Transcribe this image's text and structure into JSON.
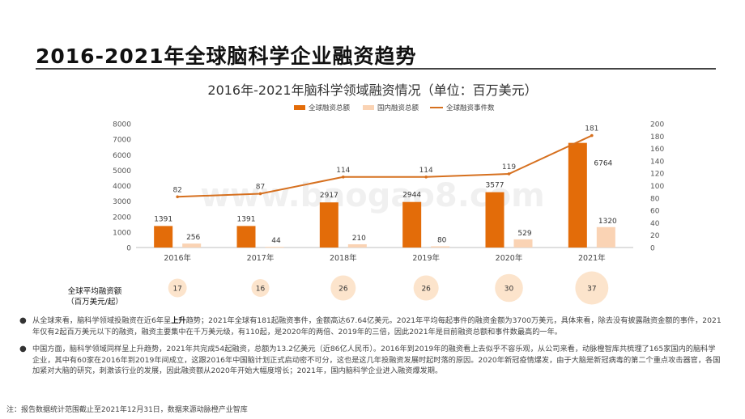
{
  "page_title": "2016-2021年全球脑科学企业融资趋势",
  "chart_title": "2016年-2021年脑科学领域融资情况（单位：百万美元）",
  "avg_label_line1": "全球平均融资额",
  "avg_label_line2": "（百万美元/起）",
  "bullet1": {
    "pre": "从全球来看，脑科学领域投融资在近6年呈",
    "bold": "上升",
    "post": "趋势；2021年全球有181起融资事件，金额高达67.64亿美元。2021年平均每起事件的融资金额为3700万美元，具体来看，除去没有披露融资金额的事件，2021年仅有2起百万美元以下的融资，融资主要集中在千万美元级，有110起，是2020年的两倍、2019年的三倍，因此2021年是目前融资总额和事件数最高的一年。"
  },
  "bullet2": "中国方面，脑科学领域同样呈上升趋势，2021年共完成54起融资，总额为13.2亿美元（近86亿人民币）。2016年到2019年的融资看上去似乎不容乐观，从公司来看，动脉橙智库共梳理了165家国内的脑科学企业，其中有60家在2016年到2019年间成立，这跟2016年中国脑计划正式启动密不可分，这也是这几年投融资发展时起时落的原因。2020年新冠疫情爆发，由于大脑是新冠病毒的第二个重点攻击器官，各国加紧对大脑的研究，刺激该行业的发展，因此融资额从2020年开始大幅度增长；2021年，国内脑科学企业进入融资爆发期。",
  "note": "注：报告数据统计范围截止至2021年12月31日，数据来源动脉橙产业智库",
  "watermark": "www.baogao8.com",
  "colors": {
    "global": "#E36C09",
    "domestic": "#FAD3B4",
    "line": "#D6701F",
    "circle": "#FCE4CC"
  },
  "chart_data": {
    "type": "bar+line",
    "title": "2016年-2021年脑科学领域融资情况（单位：百万美元）",
    "categories": [
      "2016年",
      "2017年",
      "2018年",
      "2019年",
      "2020年",
      "2021年"
    ],
    "series": [
      {
        "name": "全球融资总额",
        "type": "bar",
        "axis": "left",
        "values": [
          1391,
          1391,
          2917,
          2944,
          3577,
          6764
        ]
      },
      {
        "name": "国内融资总额",
        "type": "bar",
        "axis": "left",
        "values": [
          256,
          44,
          210,
          80,
          529,
          1320
        ]
      },
      {
        "name": "全球融资事件数",
        "type": "line",
        "axis": "right",
        "values": [
          82,
          87,
          114,
          114,
          119,
          181
        ]
      }
    ],
    "left_axis": {
      "min": 0,
      "max": 8000,
      "ticks": [
        0,
        1000,
        2000,
        3000,
        4000,
        5000,
        6000,
        7000,
        8000
      ]
    },
    "right_axis": {
      "min": 0,
      "max": 200,
      "ticks": [
        0,
        20,
        40,
        60,
        80,
        100,
        120,
        140,
        160,
        180,
        200
      ]
    },
    "legend_position": "top-right",
    "grid": false,
    "avg_per_event": [
      17,
      16,
      26,
      26,
      30,
      37
    ]
  }
}
